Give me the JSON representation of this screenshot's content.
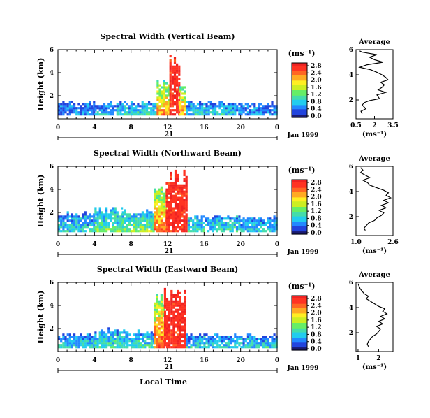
{
  "figure": {
    "panels": [
      {
        "title": "Spectral Width (Vertical Beam)"
      },
      {
        "title": "Spectral Width (Northward Beam)"
      },
      {
        "title": "Spectral Width (Eastward Beam)"
      }
    ],
    "ylabel": "Height (km)",
    "xlabel": "Local Time",
    "date_day": "21",
    "date_label": "Jan 1999",
    "colorbar_unit": "(ms⁻¹)",
    "profile_title": "Average",
    "profile_xlabel": "(ms⁻¹)",
    "colors": {
      "scale": [
        "#1a1a70",
        "#2244dd",
        "#2288ff",
        "#22ccee",
        "#44ddaa",
        "#66ee66",
        "#ccee22",
        "#ffee22",
        "#ffaa22",
        "#ff6622",
        "#ff3322",
        "#ee2222"
      ]
    }
  },
  "chart_data": [
    {
      "type": "heatmap",
      "title": "Spectral Width (Vertical Beam)",
      "xlabel": "",
      "ylabel": "Height (km)",
      "xlim": [
        0,
        24
      ],
      "ylim": [
        0,
        6
      ],
      "xticks": [
        "0",
        "4",
        "8",
        "12",
        "16",
        "20",
        "0"
      ],
      "yticks": [
        "2",
        "4",
        "6"
      ],
      "colorbar": {
        "label": "(ms⁻¹)",
        "range": [
          0,
          2.8
        ],
        "ticks": [
          "2.8",
          "2.4",
          "2.0",
          "1.6",
          "1.2",
          "0.8",
          "0.4",
          "0.0"
        ]
      },
      "activity": [
        {
          "t0": 0.0,
          "t1": 4.0,
          "top": 1.4,
          "level": 0.18
        },
        {
          "t0": 4.0,
          "t1": 6.5,
          "top": 1.3,
          "level": 0.25
        },
        {
          "t0": 6.5,
          "t1": 10.8,
          "top": 1.4,
          "level": 0.35
        },
        {
          "t0": 10.8,
          "t1": 12.2,
          "top": 3.0,
          "level": 0.7
        },
        {
          "t0": 12.2,
          "t1": 13.3,
          "top": 5.2,
          "level": 0.95
        },
        {
          "t0": 13.3,
          "t1": 14.0,
          "top": 3.2,
          "level": 0.7
        },
        {
          "t0": 14.0,
          "t1": 19.5,
          "top": 1.4,
          "level": 0.3
        },
        {
          "t0": 19.5,
          "t1": 23.9,
          "top": 1.3,
          "level": 0.2
        }
      ]
    },
    {
      "type": "heatmap",
      "title": "Spectral Width (Northward Beam)",
      "xlabel": "",
      "ylabel": "Height (km)",
      "xlim": [
        0,
        24
      ],
      "ylim": [
        0,
        6
      ],
      "xticks": [
        "0",
        "4",
        "8",
        "12",
        "16",
        "20",
        "0"
      ],
      "yticks": [
        "2",
        "4",
        "6"
      ],
      "colorbar": {
        "label": "(ms⁻¹)",
        "range": [
          0,
          2.8
        ],
        "ticks": [
          "2.8",
          "2.4",
          "2.0",
          "1.6",
          "1.2",
          "0.8",
          "0.4",
          "0.0"
        ]
      },
      "activity": [
        {
          "t0": 0.0,
          "t1": 4.0,
          "top": 1.8,
          "level": 0.3
        },
        {
          "t0": 4.0,
          "t1": 7.0,
          "top": 2.2,
          "level": 0.4
        },
        {
          "t0": 7.0,
          "t1": 10.5,
          "top": 2.0,
          "level": 0.45
        },
        {
          "t0": 10.5,
          "t1": 11.8,
          "top": 4.0,
          "level": 0.75
        },
        {
          "t0": 11.8,
          "t1": 14.2,
          "top": 5.2,
          "level": 0.95
        },
        {
          "t0": 14.2,
          "t1": 19.5,
          "top": 1.6,
          "level": 0.35
        },
        {
          "t0": 19.5,
          "t1": 23.9,
          "top": 1.5,
          "level": 0.3
        }
      ]
    },
    {
      "type": "heatmap",
      "title": "Spectral Width (Eastward Beam)",
      "xlabel": "Local Time",
      "ylabel": "Height (km)",
      "xlim": [
        0,
        24
      ],
      "ylim": [
        0,
        6
      ],
      "xticks": [
        "0",
        "4",
        "8",
        "12",
        "16",
        "20",
        "0"
      ],
      "yticks": [
        "2",
        "4",
        "6"
      ],
      "colorbar": {
        "label": "(ms⁻¹)",
        "range": [
          0,
          2.8
        ],
        "ticks": [
          "2.8",
          "2.4",
          "2.0",
          "1.6",
          "1.2",
          "0.8",
          "0.4",
          "0.0"
        ]
      },
      "activity": [
        {
          "t0": 0.0,
          "t1": 4.0,
          "top": 1.4,
          "level": 0.3
        },
        {
          "t0": 4.0,
          "t1": 7.5,
          "top": 1.8,
          "level": 0.35
        },
        {
          "t0": 7.5,
          "t1": 10.5,
          "top": 1.6,
          "level": 0.35
        },
        {
          "t0": 10.5,
          "t1": 11.6,
          "top": 4.6,
          "level": 0.8
        },
        {
          "t0": 11.6,
          "t1": 14.0,
          "top": 5.0,
          "level": 0.95
        },
        {
          "t0": 14.0,
          "t1": 19.5,
          "top": 1.4,
          "level": 0.3
        },
        {
          "t0": 19.5,
          "t1": 23.9,
          "top": 1.3,
          "level": 0.3
        }
      ]
    },
    {
      "type": "line",
      "title": "Average",
      "xlabel": "(ms⁻¹)",
      "ylabel": "",
      "xlim": [
        0.5,
        3.5
      ],
      "ylim": [
        0.5,
        6
      ],
      "xticks": [
        "0.5",
        "2",
        "3.5"
      ],
      "xtick_values": [
        0.5,
        2,
        3.5
      ],
      "yticks": [
        "2",
        "4",
        "6"
      ],
      "x": [
        1.0,
        0.9,
        1.3,
        1.1,
        1.0,
        1.2,
        1.6,
        2.4,
        2.2,
        2.9,
        2.3,
        2.6,
        2.8,
        2.5,
        3.1,
        2.9,
        2.6,
        2.2,
        1.7,
        0.8,
        1.4,
        2.7,
        2.0,
        1.6,
        2.2,
        1.0,
        0.8
      ],
      "y": [
        0.9,
        1.1,
        1.3,
        1.5,
        1.6,
        1.8,
        1.95,
        2.1,
        2.4,
        2.6,
        2.8,
        3.0,
        3.2,
        3.4,
        3.6,
        3.8,
        4.0,
        4.2,
        4.4,
        4.6,
        4.8,
        5.0,
        5.2,
        5.4,
        5.6,
        5.8,
        5.9
      ]
    },
    {
      "type": "line",
      "title": "Average",
      "xlabel": "(ms⁻¹)",
      "ylabel": "",
      "xlim": [
        1.0,
        2.6
      ],
      "ylim": [
        0.5,
        6
      ],
      "xticks": [
        "1.0",
        "2.6"
      ],
      "xtick_values": [
        1.0,
        2.6
      ],
      "yticks": [
        "2",
        "4",
        "6"
      ],
      "x": [
        1.4,
        1.35,
        1.45,
        1.55,
        1.8,
        1.9,
        2.1,
        2.2,
        2.0,
        2.3,
        2.1,
        2.4,
        2.2,
        2.5,
        2.3,
        2.4,
        2.2,
        1.9,
        1.6,
        1.5,
        1.3,
        1.6,
        1.4,
        1.2,
        1.3,
        1.2
      ],
      "y": [
        0.9,
        1.1,
        1.3,
        1.5,
        1.7,
        1.9,
        2.1,
        2.3,
        2.5,
        2.7,
        2.9,
        3.1,
        3.3,
        3.5,
        3.7,
        3.9,
        4.1,
        4.3,
        4.5,
        4.7,
        4.9,
        5.1,
        5.3,
        5.5,
        5.7,
        5.9
      ]
    },
    {
      "type": "line",
      "title": "Average",
      "xlabel": "(ms⁻¹)",
      "ylabel": "",
      "xlim": [
        0.9,
        2.7
      ],
      "ylim": [
        0.5,
        6
      ],
      "xticks": [
        "1",
        "2"
      ],
      "xtick_values": [
        1,
        2
      ],
      "yticks": [
        "2",
        "4",
        "6"
      ],
      "x": [
        1.5,
        1.45,
        1.5,
        1.6,
        1.7,
        1.9,
        2.0,
        2.1,
        1.9,
        2.2,
        2.0,
        2.3,
        2.1,
        2.4,
        2.2,
        2.3,
        2.0,
        1.8,
        1.6,
        1.4,
        1.5,
        1.3,
        1.2,
        1.1,
        1.05,
        1.0
      ],
      "y": [
        0.9,
        1.1,
        1.3,
        1.5,
        1.7,
        1.9,
        2.1,
        2.3,
        2.5,
        2.7,
        2.9,
        3.1,
        3.3,
        3.5,
        3.7,
        3.9,
        4.1,
        4.3,
        4.5,
        4.7,
        4.9,
        5.1,
        5.3,
        5.5,
        5.7,
        5.9
      ]
    }
  ]
}
